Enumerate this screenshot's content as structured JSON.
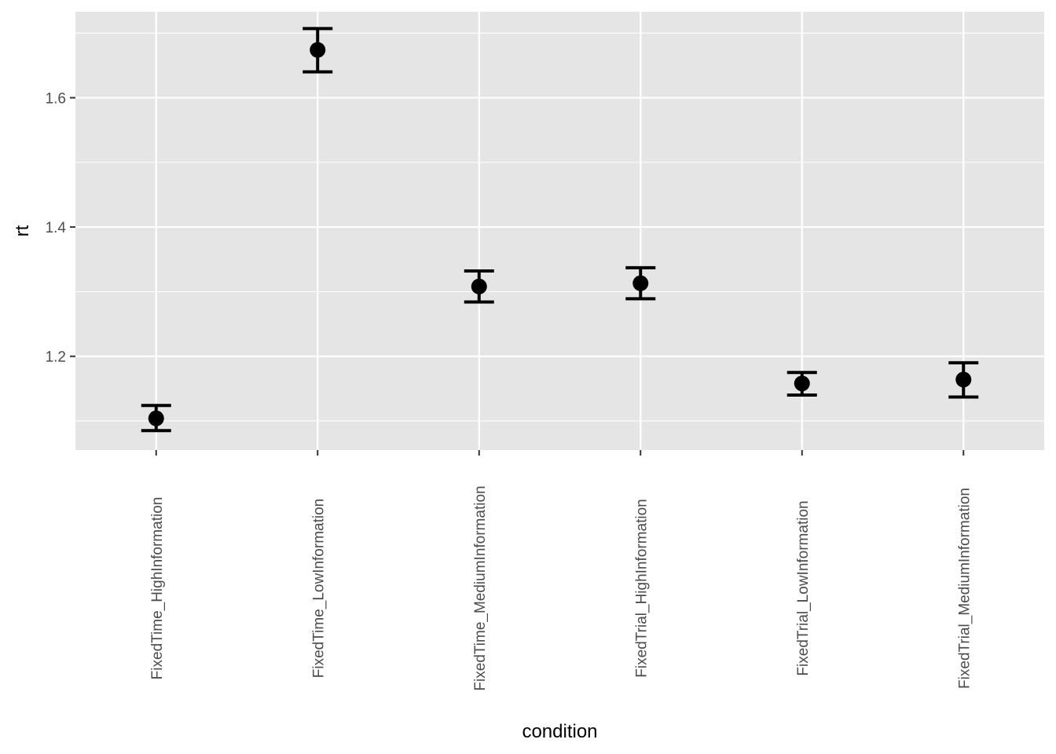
{
  "chart_data": {
    "type": "scatter",
    "subtype": "point-errorbar",
    "xlabel": "condition",
    "ylabel": "rt",
    "categories": [
      "FixedTime_HighInformation",
      "FixedTime_LowInformation",
      "FixedTime_MediumInformation",
      "FixedTrial_HighInformation",
      "FixedTrial_LowInformation",
      "FixedTrial_MediumInformation"
    ],
    "series": [
      {
        "values": [
          1.104,
          1.674,
          1.308,
          1.313,
          1.158,
          1.164
        ],
        "lower": [
          1.085,
          1.64,
          1.284,
          1.289,
          1.14,
          1.137
        ],
        "upper": [
          1.124,
          1.707,
          1.332,
          1.337,
          1.175,
          1.19
        ]
      }
    ],
    "ylim": [
      1.055,
      1.733
    ],
    "yticks": [
      1.2,
      1.4,
      1.6
    ],
    "ytick_labels": [
      "1.2",
      "1.4",
      "1.6"
    ],
    "grid": true,
    "legend": "none",
    "colors": {
      "panel": "#e5e5e5",
      "grid": "#ffffff",
      "marks": "#000000",
      "ticks": "#333333",
      "tick_text": "#4d4d4d"
    }
  }
}
